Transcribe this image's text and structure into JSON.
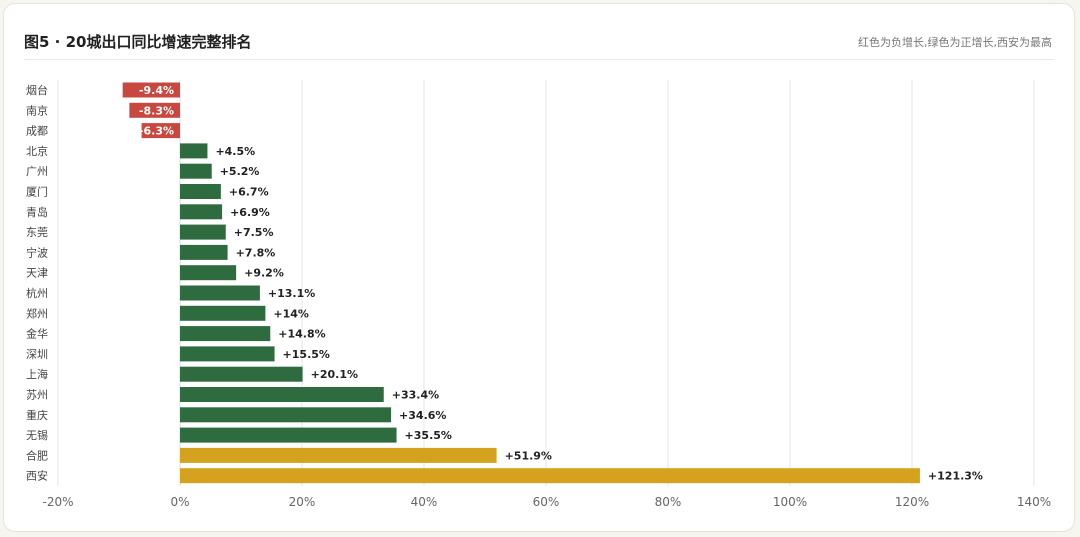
{
  "header": {
    "title": "图5 · 20城出口同比增速完整排名",
    "subtitle": "红色为负增长,绿色为正增长,西安为最高"
  },
  "colors": {
    "negative": "#c8473e",
    "positive": "#2e6b3f",
    "highlight": "#d4a21c",
    "grid": "#e6e6e6"
  },
  "chart_data": {
    "type": "bar",
    "orientation": "horizontal",
    "categories": [
      "烟台",
      "南京",
      "成都",
      "北京",
      "广州",
      "厦门",
      "青岛",
      "东莞",
      "宁波",
      "天津",
      "杭州",
      "郑州",
      "金华",
      "深圳",
      "上海",
      "苏州",
      "重庆",
      "无锡",
      "合肥",
      "西安"
    ],
    "values": [
      -9.4,
      -8.3,
      -6.3,
      4.5,
      5.2,
      6.7,
      6.9,
      7.5,
      7.8,
      9.2,
      13.1,
      14,
      14.8,
      15.5,
      20.1,
      33.4,
      34.6,
      35.5,
      51.9,
      121.3
    ],
    "value_labels": [
      "-9.4%",
      "-8.3%",
      "-6.3%",
      "+4.5%",
      "+5.2%",
      "+6.7%",
      "+6.9%",
      "+7.5%",
      "+7.8%",
      "+9.2%",
      "+13.1%",
      "+14%",
      "+14.8%",
      "+15.5%",
      "+20.1%",
      "+33.4%",
      "+34.6%",
      "+35.5%",
      "+51.9%",
      "+121.3%"
    ],
    "highlighted": [
      "合肥",
      "西安"
    ],
    "xlim": [
      -20,
      140
    ],
    "xticks": [
      -20,
      0,
      20,
      40,
      60,
      80,
      100,
      120,
      140
    ],
    "xtick_labels": [
      "-20%",
      "0%",
      "20%",
      "40%",
      "60%",
      "80%",
      "100%",
      "120%",
      "140%"
    ],
    "grid": true
  }
}
